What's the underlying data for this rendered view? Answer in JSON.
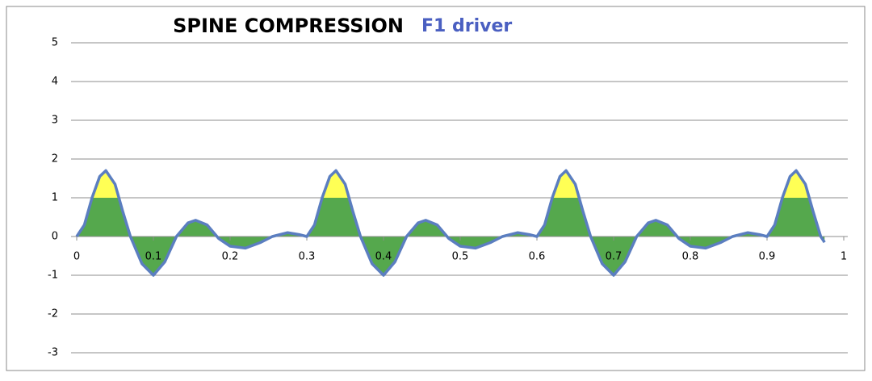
{
  "chart_data": {
    "type": "area",
    "title": "SPINE COMPRESSION",
    "subtitle": "F1 driver",
    "x": [
      0,
      0.01,
      0.02,
      0.03,
      0.038,
      0.05,
      0.06,
      0.07,
      0.085,
      0.1,
      0.115,
      0.13,
      0.145,
      0.155,
      0.17,
      0.185,
      0.2,
      0.22,
      0.24,
      0.255,
      0.275,
      0.29,
      0.3,
      0.31,
      0.32,
      0.33,
      0.338,
      0.35,
      0.36,
      0.37,
      0.385,
      0.4,
      0.415,
      0.43,
      0.445,
      0.455,
      0.47,
      0.485,
      0.5,
      0.52,
      0.54,
      0.555,
      0.575,
      0.59,
      0.6,
      0.61,
      0.62,
      0.63,
      0.638,
      0.65,
      0.66,
      0.67,
      0.685,
      0.7,
      0.715,
      0.73,
      0.745,
      0.755,
      0.77,
      0.785,
      0.8,
      0.82,
      0.84,
      0.855,
      0.875,
      0.89,
      0.9,
      0.91,
      0.92,
      0.93,
      0.938,
      0.95,
      0.96,
      0.97,
      0.975
    ],
    "values": [
      0,
      0.3,
      1.0,
      1.55,
      1.7,
      1.35,
      0.65,
      0,
      -0.7,
      -1,
      -0.65,
      0,
      0.35,
      0.42,
      0.3,
      -0.05,
      -0.25,
      -0.3,
      -0.15,
      0,
      0.1,
      0.05,
      0,
      0.3,
      1.0,
      1.55,
      1.7,
      1.35,
      0.65,
      0,
      -0.7,
      -1,
      -0.65,
      0,
      0.35,
      0.42,
      0.3,
      -0.05,
      -0.25,
      -0.3,
      -0.15,
      0,
      0.1,
      0.05,
      0,
      0.3,
      1.0,
      1.55,
      1.7,
      1.35,
      0.65,
      0,
      -0.7,
      -1,
      -0.65,
      0,
      0.35,
      0.42,
      0.3,
      -0.05,
      -0.25,
      -0.3,
      -0.15,
      0,
      0.1,
      0.05,
      0,
      0.3,
      1.0,
      1.55,
      1.7,
      1.35,
      0.65,
      0,
      -0.15
    ],
    "line_color": "#5b7ec0",
    "fill_color": "#55a84d",
    "threshold": 1,
    "threshold_color": "#ffff55",
    "xlim": [
      0,
      1
    ],
    "xticks": [
      0,
      0.1,
      0.2,
      0.3,
      0.4,
      0.5,
      0.6,
      0.7,
      0.8,
      0.9,
      1
    ],
    "ylim": [
      -3,
      5
    ],
    "yticks": [
      -3,
      -2,
      -1,
      0,
      1,
      2,
      3,
      4,
      5
    ],
    "grid": true
  }
}
